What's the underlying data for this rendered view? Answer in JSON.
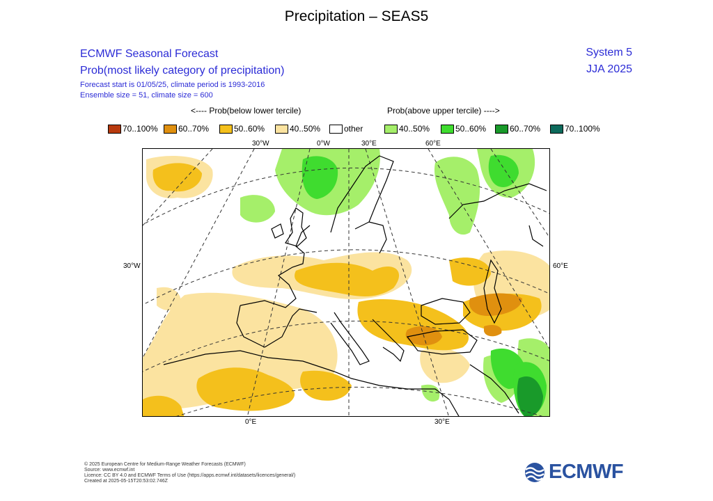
{
  "title": "Precipitation – SEAS5",
  "header": {
    "line1": "ECMWF Seasonal Forecast",
    "line2": "Prob(most likely category of precipitation)",
    "line3": "Forecast start is 01/05/25, climate period is 1993-2016",
    "line4": "Ensemble size = 51, climate size = 600",
    "system": "System 5",
    "season": "JJA 2025"
  },
  "legend": {
    "below_label": "<---- Prob(below lower tercile)",
    "above_label": "Prob(above upper tercile) ---->",
    "items": [
      {
        "label": "70..100%",
        "color": "#b83a0e"
      },
      {
        "label": "60..70%",
        "color": "#e0900f"
      },
      {
        "label": "50..60%",
        "color": "#f4c01c"
      },
      {
        "label": "40..50%",
        "color": "#fbe3a0"
      },
      {
        "label": "other",
        "color": "#ffffff"
      },
      {
        "label": "40..50%",
        "color": "#a5ef6a"
      },
      {
        "label": "50..60%",
        "color": "#3fdc2f"
      },
      {
        "label": "60..70%",
        "color": "#199a2a"
      },
      {
        "label": "70..100%",
        "color": "#0d6a5c"
      }
    ]
  },
  "map": {
    "lon_labels_top": [
      "30°W",
      "0°W",
      "30°E",
      "60°E"
    ],
    "lon_labels_bottom": [
      "0°E",
      "30°E"
    ],
    "lat_left": "30°W",
    "lat_right": "60°E"
  },
  "footer": {
    "copyright": "© 2025 European Centre for Medium-Range Weather Forecasts (ECMWF)",
    "source": "Source: www.ecmwf.int",
    "licence": "Licence: CC BY 4.0 and ECMWF Terms of Use (https://apps.ecmwf.int/datasets/licences/general/)",
    "created": "Created at 2025-05-15T20:53:02.746Z"
  },
  "logo": {
    "text": "ECMWF",
    "color": "#2a52a0"
  }
}
